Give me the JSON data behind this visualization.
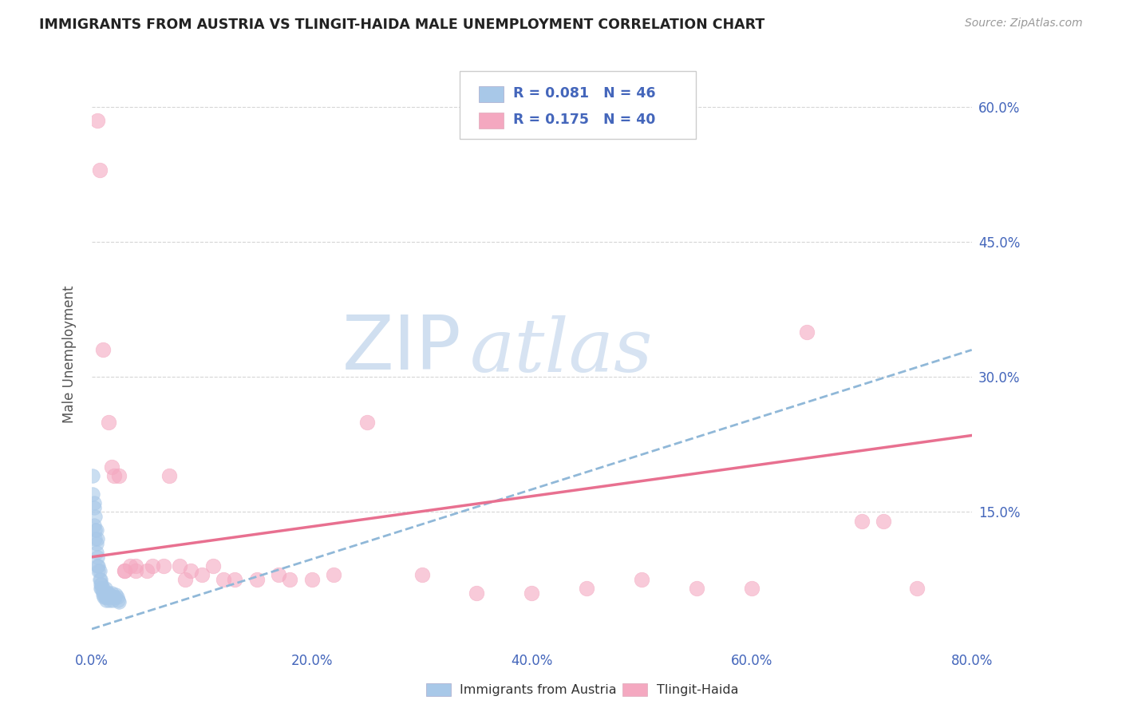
{
  "title": "IMMIGRANTS FROM AUSTRIA VS TLINGIT-HAIDA MALE UNEMPLOYMENT CORRELATION CHART",
  "source": "Source: ZipAtlas.com",
  "ylabel_label": "Male Unemployment",
  "blue_scatter_x": [
    0.001,
    0.001,
    0.002,
    0.002,
    0.003,
    0.003,
    0.004,
    0.004,
    0.005,
    0.005,
    0.006,
    0.006,
    0.007,
    0.007,
    0.008,
    0.008,
    0.008,
    0.009,
    0.009,
    0.01,
    0.01,
    0.01,
    0.011,
    0.011,
    0.012,
    0.012,
    0.013,
    0.013,
    0.014,
    0.015,
    0.015,
    0.016,
    0.016,
    0.017,
    0.018,
    0.019,
    0.02,
    0.021,
    0.022,
    0.023,
    0.024,
    0.025,
    0.002,
    0.003,
    0.004,
    0.005
  ],
  "blue_scatter_y": [
    0.19,
    0.17,
    0.16,
    0.135,
    0.13,
    0.12,
    0.115,
    0.105,
    0.1,
    0.09,
    0.09,
    0.085,
    0.085,
    0.075,
    0.075,
    0.07,
    0.065,
    0.07,
    0.065,
    0.065,
    0.062,
    0.058,
    0.06,
    0.055,
    0.065,
    0.055,
    0.06,
    0.052,
    0.055,
    0.06,
    0.055,
    0.058,
    0.052,
    0.055,
    0.06,
    0.052,
    0.055,
    0.055,
    0.058,
    0.055,
    0.052,
    0.05,
    0.155,
    0.145,
    0.13,
    0.12
  ],
  "pink_scatter_x": [
    0.005,
    0.007,
    0.01,
    0.015,
    0.018,
    0.02,
    0.025,
    0.03,
    0.035,
    0.04,
    0.05,
    0.055,
    0.065,
    0.07,
    0.08,
    0.085,
    0.09,
    0.1,
    0.11,
    0.12,
    0.13,
    0.15,
    0.17,
    0.18,
    0.2,
    0.22,
    0.25,
    0.3,
    0.35,
    0.4,
    0.45,
    0.5,
    0.55,
    0.6,
    0.65,
    0.7,
    0.72,
    0.75,
    0.03,
    0.04
  ],
  "pink_scatter_y": [
    0.585,
    0.53,
    0.33,
    0.25,
    0.2,
    0.19,
    0.19,
    0.085,
    0.09,
    0.09,
    0.085,
    0.09,
    0.09,
    0.19,
    0.09,
    0.075,
    0.085,
    0.08,
    0.09,
    0.075,
    0.075,
    0.075,
    0.08,
    0.075,
    0.075,
    0.08,
    0.25,
    0.08,
    0.06,
    0.06,
    0.065,
    0.075,
    0.065,
    0.065,
    0.35,
    0.14,
    0.14,
    0.065,
    0.085,
    0.085
  ],
  "blue_line_x": [
    0.0,
    0.8
  ],
  "blue_line_y_start": 0.02,
  "blue_line_y_end": 0.33,
  "pink_line_x": [
    0.0,
    0.8
  ],
  "pink_line_y_start": 0.1,
  "pink_line_y_end": 0.235,
  "xmin": 0.0,
  "xmax": 0.8,
  "ymin": 0.0,
  "ymax": 0.65,
  "x_ticks": [
    0.0,
    0.2,
    0.4,
    0.6,
    0.8
  ],
  "x_tick_labels": [
    "0.0%",
    "20.0%",
    "40.0%",
    "60.0%",
    "80.0%"
  ],
  "y_ticks_right": [
    0.15,
    0.3,
    0.45,
    0.6
  ],
  "y_tick_labels_right": [
    "15.0%",
    "30.0%",
    "45.0%",
    "60.0%"
  ],
  "background_color": "#ffffff",
  "grid_color": "#cccccc",
  "blue_color": "#a8c8e8",
  "pink_color": "#f4a8c0",
  "blue_line_color": "#90b8d8",
  "pink_line_color": "#e87090",
  "tick_color": "#4466bb",
  "watermark_zip": "ZIP",
  "watermark_atlas": "atlas",
  "watermark_color": "#d0dff0"
}
